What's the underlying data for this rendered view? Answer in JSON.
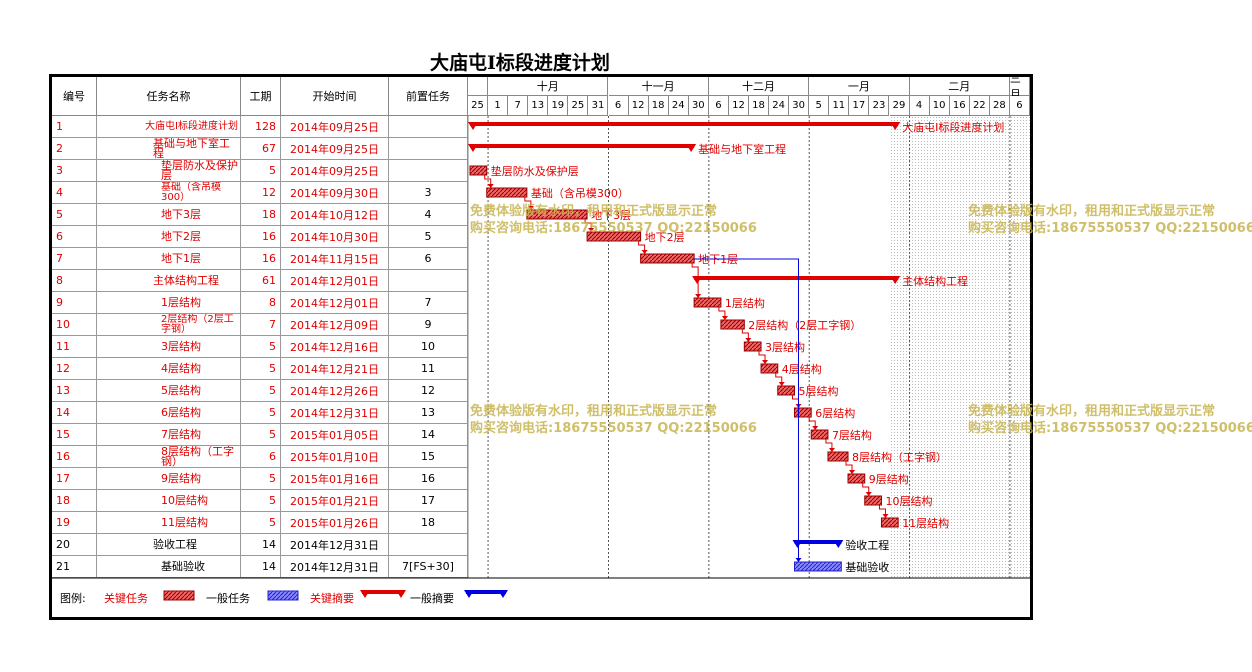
{
  "title": "大庙屯Ⅰ标段进度计划",
  "columns": {
    "id": "编号",
    "name": "任务名称",
    "duration": "工期",
    "start": "开始时间",
    "predecessor": "前置任务"
  },
  "months": [
    "十月",
    "十一月",
    "十二月",
    "一月",
    "二月",
    "三月"
  ],
  "days": [
    "25",
    "1",
    "7",
    "13",
    "19",
    "25",
    "31",
    "6",
    "12",
    "18",
    "24",
    "30",
    "6",
    "12",
    "18",
    "24",
    "30",
    "5",
    "11",
    "17",
    "23",
    "29",
    "4",
    "10",
    "16",
    "22",
    "28",
    "6"
  ],
  "tasks": [
    {
      "id": "1",
      "name": "大庙屯Ⅰ标段进度计划",
      "duration": "128",
      "start": "2014年09月25日",
      "pred": "",
      "color": "red",
      "indent": 0,
      "type": "summary",
      "bar_label": "大庙屯Ⅰ标段进度计划"
    },
    {
      "id": "2",
      "name": "基础与地下室工程",
      "duration": "67",
      "start": "2014年09月25日",
      "pred": "",
      "color": "red",
      "indent": 1,
      "type": "summary",
      "bar_label": "基础与地下室工程"
    },
    {
      "id": "3",
      "name": "垫层防水及保护层",
      "duration": "5",
      "start": "2014年09月25日",
      "pred": "",
      "color": "red",
      "indent": 2,
      "type": "task",
      "bar_label": "垫层防水及保护层"
    },
    {
      "id": "4",
      "name": "基础（含吊模300）",
      "duration": "12",
      "start": "2014年09月30日",
      "pred": "3",
      "color": "red",
      "indent": 2,
      "type": "task",
      "bar_label": "基础（含吊模300）"
    },
    {
      "id": "5",
      "name": "地下3层",
      "duration": "18",
      "start": "2014年10月12日",
      "pred": "4",
      "color": "red",
      "indent": 2,
      "type": "task",
      "bar_label": "地下3层"
    },
    {
      "id": "6",
      "name": "地下2层",
      "duration": "16",
      "start": "2014年10月30日",
      "pred": "5",
      "color": "red",
      "indent": 2,
      "type": "task",
      "bar_label": "地下2层"
    },
    {
      "id": "7",
      "name": "地下1层",
      "duration": "16",
      "start": "2014年11月15日",
      "pred": "6",
      "color": "red",
      "indent": 2,
      "type": "task",
      "bar_label": "地下1层"
    },
    {
      "id": "8",
      "name": "主体结构工程",
      "duration": "61",
      "start": "2014年12月01日",
      "pred": "",
      "color": "red",
      "indent": 1,
      "type": "summary",
      "bar_label": "主体结构工程"
    },
    {
      "id": "9",
      "name": "1层结构",
      "duration": "8",
      "start": "2014年12月01日",
      "pred": "7",
      "color": "red",
      "indent": 2,
      "type": "task",
      "bar_label": "1层结构"
    },
    {
      "id": "10",
      "name": "2层结构（2层工字钢）",
      "duration": "7",
      "start": "2014年12月09日",
      "pred": "9",
      "color": "red",
      "indent": 2,
      "type": "task",
      "bar_label": "2层结构（2层工字钢）"
    },
    {
      "id": "11",
      "name": "3层结构",
      "duration": "5",
      "start": "2014年12月16日",
      "pred": "10",
      "color": "red",
      "indent": 2,
      "type": "task",
      "bar_label": "3层结构"
    },
    {
      "id": "12",
      "name": "4层结构",
      "duration": "5",
      "start": "2014年12月21日",
      "pred": "11",
      "color": "red",
      "indent": 2,
      "type": "task",
      "bar_label": "4层结构"
    },
    {
      "id": "13",
      "name": "5层结构",
      "duration": "5",
      "start": "2014年12月26日",
      "pred": "12",
      "color": "red",
      "indent": 2,
      "type": "task",
      "bar_label": "5层结构"
    },
    {
      "id": "14",
      "name": "6层结构",
      "duration": "5",
      "start": "2014年12月31日",
      "pred": "13",
      "color": "red",
      "indent": 2,
      "type": "task",
      "bar_label": "6层结构"
    },
    {
      "id": "15",
      "name": "7层结构",
      "duration": "5",
      "start": "2015年01月05日",
      "pred": "14",
      "color": "red",
      "indent": 2,
      "type": "task",
      "bar_label": "7层结构"
    },
    {
      "id": "16",
      "name": "8层结构（工字钢）",
      "duration": "6",
      "start": "2015年01月10日",
      "pred": "15",
      "color": "red",
      "indent": 2,
      "type": "task",
      "bar_label": "8层结构（工字钢）"
    },
    {
      "id": "17",
      "name": "9层结构",
      "duration": "5",
      "start": "2015年01月16日",
      "pred": "16",
      "color": "red",
      "indent": 2,
      "type": "task",
      "bar_label": "9层结构"
    },
    {
      "id": "18",
      "name": "10层结构",
      "duration": "5",
      "start": "2015年01月21日",
      "pred": "17",
      "color": "red",
      "indent": 2,
      "type": "task",
      "bar_label": "10层结构"
    },
    {
      "id": "19",
      "name": "11层结构",
      "duration": "5",
      "start": "2015年01月26日",
      "pred": "18",
      "color": "red",
      "indent": 2,
      "type": "task",
      "bar_label": "11层结构"
    },
    {
      "id": "20",
      "name": "验收工程",
      "duration": "14",
      "start": "2014年12月31日",
      "pred": "",
      "color": "black",
      "indent": 1,
      "type": "summary",
      "bar_label": "验收工程"
    },
    {
      "id": "21",
      "name": "基础验收",
      "duration": "14",
      "start": "2014年12月31日",
      "pred": "7[FS+30]",
      "color": "black",
      "indent": 2,
      "type": "task",
      "bar_label": "基础验收"
    }
  ],
  "watermark": {
    "line1": "免费体验版有水印，租用和正式版显示正常",
    "line2": "购买咨询电话:18675550537 QQ:22150066"
  },
  "legend": {
    "prefix": "图例:",
    "critical_task": "关键任务",
    "normal_task": "一般任务",
    "critical_summary": "关键摘要",
    "normal_summary": "一般摘要"
  },
  "colors": {
    "critical": "#e00000",
    "normal": "#0000e0",
    "watermark": "#c8b450"
  }
}
